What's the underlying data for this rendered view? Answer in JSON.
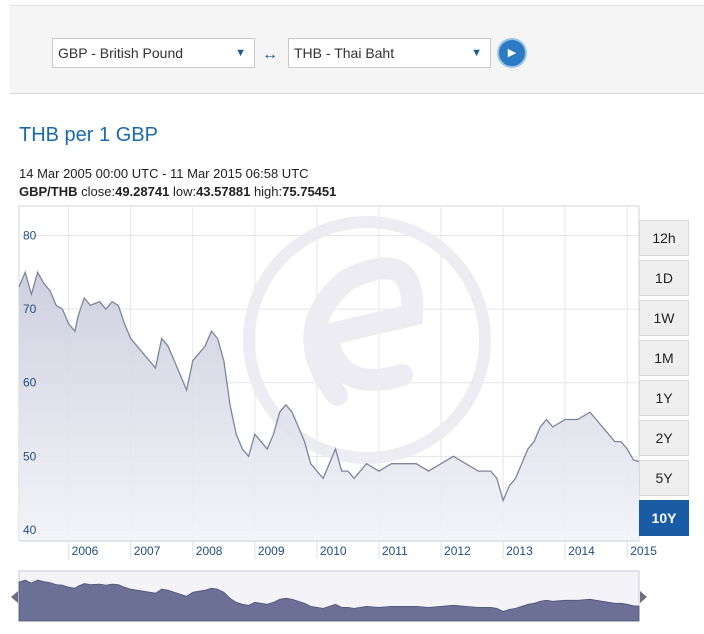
{
  "converter": {
    "from_currency": "GBP - British Pound",
    "to_currency": "THB - Thai Baht",
    "swap_symbol": "↔",
    "go_symbol": "▶",
    "arrow_symbol": "▼"
  },
  "chart_header": {
    "title": "THB per 1 GBP",
    "date_range": "14 Mar 2005 00:00 UTC - 11 Mar 2015 06:58 UTC",
    "pair": "GBP/THB",
    "close_label": "close:",
    "close_value": "49.28741",
    "low_label": "low:",
    "low_value": "43.57881",
    "high_label": "high:",
    "high_value": "75.75451"
  },
  "range_buttons": [
    {
      "label": "12h",
      "active": false
    },
    {
      "label": "1D",
      "active": false
    },
    {
      "label": "1W",
      "active": false
    },
    {
      "label": "1M",
      "active": false
    },
    {
      "label": "1Y",
      "active": false
    },
    {
      "label": "2Y",
      "active": false
    },
    {
      "label": "5Y",
      "active": false
    },
    {
      "label": "10Y",
      "active": true
    }
  ],
  "colors": {
    "line": "#7f849e",
    "fill_top": "#c9cbdc",
    "fill_bottom": "#f2f3f8",
    "navigator_fill": "#6c7096",
    "axis_label": "#1f4f80",
    "active_button": "#1a5ba6"
  },
  "chart_data": {
    "type": "area",
    "title": "THB per 1 GBP",
    "xlabel": "",
    "ylabel": "",
    "xlim": [
      2005.2,
      2015.19
    ],
    "ylim": [
      38.5,
      84
    ],
    "y_ticks": [
      40,
      50,
      60,
      70,
      80
    ],
    "x_ticks": [
      2006,
      2007,
      2008,
      2009,
      2010,
      2011,
      2012,
      2013,
      2014,
      2015
    ],
    "grid": true,
    "legend": "none",
    "series": [
      {
        "x": [
          2005.2,
          2005.3,
          2005.4,
          2005.5,
          2005.6,
          2005.7,
          2005.8,
          2005.9,
          2006.0,
          2006.1,
          2006.15,
          2006.25,
          2006.35,
          2006.5,
          2006.6,
          2006.7,
          2006.8,
          2006.9,
          2007.0,
          2007.1,
          2007.2,
          2007.3,
          2007.4,
          2007.5,
          2007.6,
          2007.7,
          2007.8,
          2007.9,
          2008.0,
          2008.1,
          2008.2,
          2008.3,
          2008.4,
          2008.5,
          2008.6,
          2008.7,
          2008.8,
          2008.9,
          2009.0,
          2009.1,
          2009.2,
          2009.3,
          2009.4,
          2009.5,
          2009.6,
          2009.7,
          2009.8,
          2009.9,
          2010.0,
          2010.1,
          2010.2,
          2010.3,
          2010.4,
          2010.5,
          2010.6,
          2010.8,
          2011.0,
          2011.2,
          2011.4,
          2011.6,
          2011.8,
          2012.0,
          2012.2,
          2012.4,
          2012.6,
          2012.7,
          2012.8,
          2012.9,
          2013.0,
          2013.1,
          2013.2,
          2013.3,
          2013.4,
          2013.5,
          2013.6,
          2013.7,
          2013.8,
          2014.0,
          2014.2,
          2014.4,
          2014.5,
          2014.6,
          2014.7,
          2014.8,
          2014.9,
          2015.0,
          2015.1,
          2015.19
        ],
        "values": [
          73,
          75,
          72,
          75,
          73.5,
          72.5,
          70.5,
          70,
          68,
          67,
          69,
          71.5,
          70.5,
          71,
          70,
          71,
          70.5,
          68,
          66,
          65,
          64,
          63,
          62,
          66,
          65,
          63,
          61,
          59,
          63,
          64,
          65,
          67,
          66,
          63,
          57,
          53,
          51,
          50,
          53,
          52,
          51,
          53,
          56,
          57,
          56,
          54,
          52,
          49,
          48,
          47,
          49,
          51,
          48,
          48,
          47,
          49,
          48,
          49,
          49,
          49,
          48,
          49,
          50,
          49,
          48,
          48,
          48,
          47,
          44,
          46,
          47,
          49,
          51,
          52,
          54,
          55,
          54,
          55,
          55,
          56,
          55,
          54,
          53,
          52,
          52,
          51,
          49.5,
          49.3
        ]
      }
    ]
  }
}
